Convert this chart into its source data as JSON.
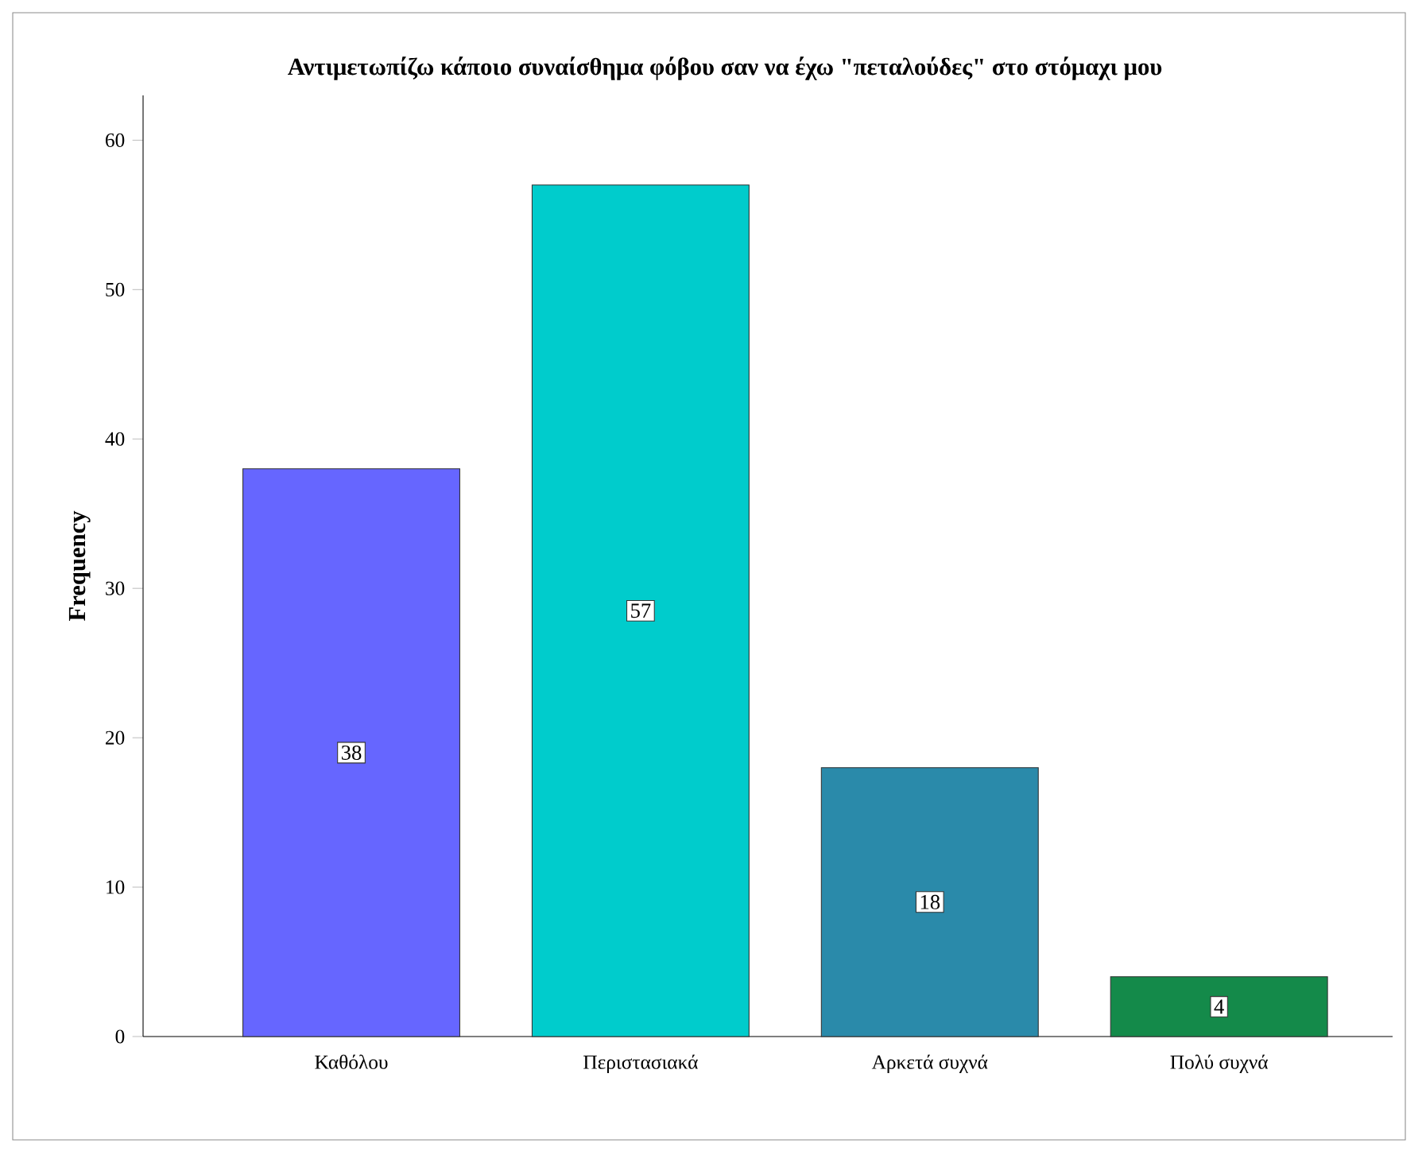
{
  "chart_data": {
    "type": "bar",
    "title": "Αντιμετωπίζω κάποιο συναίσθημα φόβου σαν να έχω \"πεταλούδες\" στο στόμαχι μου",
    "ylabel": "Frequency",
    "categories": [
      "Καθόλου",
      "Περιστασιακά",
      "Αρκετά συχνά",
      "Πολύ συχνά"
    ],
    "values": [
      38,
      57,
      18,
      4
    ],
    "colors": [
      "#6666ff",
      "#00cccc",
      "#2a8aaa",
      "#148a4a"
    ],
    "ylim": [
      0,
      63
    ],
    "yticks": [
      0,
      10,
      20,
      30,
      40,
      50,
      60
    ],
    "data_labels": true
  }
}
